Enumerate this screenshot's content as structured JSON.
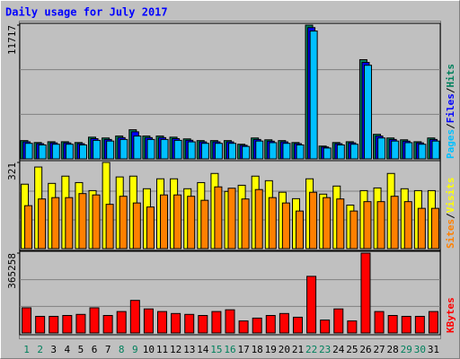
{
  "chart_data": {
    "type": "bar",
    "title": "Daily usage for July 2017",
    "categories": [
      "1",
      "2",
      "3",
      "4",
      "5",
      "6",
      "7",
      "8",
      "9",
      "10",
      "11",
      "12",
      "13",
      "14",
      "15",
      "16",
      "17",
      "18",
      "19",
      "20",
      "21",
      "22",
      "23",
      "24",
      "25",
      "26",
      "27",
      "28",
      "29",
      "30",
      "31"
    ],
    "highlight": [
      0,
      1,
      7,
      8,
      14,
      15,
      21,
      22,
      28,
      29
    ],
    "highlight_color": "#00805c",
    "legend_separator": "/",
    "grid": true,
    "panels": [
      {
        "type": "bar",
        "ylim": [
          0,
          11717
        ],
        "yticks": [
          11717
        ],
        "series": [
          {
            "name": "Hits",
            "color": "#00805c",
            "values": [
              1600,
              1430,
              1500,
              1500,
              1430,
              1900,
              1830,
              2000,
              2550,
              2000,
              2000,
              1900,
              1750,
              1600,
              1600,
              1600,
              1280,
              1830,
              1670,
              1600,
              1430,
              11717,
              1120,
              1430,
              1500,
              8690,
              2150,
              1830,
              1670,
              1500,
              1830
            ]
          },
          {
            "name": "Files",
            "color": "#0000ff",
            "values": [
              1490,
              1330,
              1400,
              1400,
              1330,
              1770,
              1700,
              1860,
              2370,
              1860,
              1860,
              1770,
              1630,
              1490,
              1490,
              1490,
              1190,
              1700,
              1550,
              1490,
              1330,
              11500,
              1040,
              1330,
              1400,
              8450,
              2000,
              1700,
              1550,
              1400,
              1700
            ]
          },
          {
            "name": "Pages",
            "color": "#00c0ff",
            "values": [
              1360,
              1220,
              1280,
              1280,
              1220,
              1620,
              1560,
              1700,
              2000,
              1700,
              1700,
              1620,
              1490,
              1360,
              1360,
              1360,
              1090,
              1560,
              1420,
              1360,
              1220,
              11200,
              950,
              1220,
              1280,
              8200,
              1830,
              1560,
              1420,
              1280,
              1560
            ]
          }
        ]
      },
      {
        "type": "bar",
        "ylim": [
          0,
          321
        ],
        "yticks": [
          321
        ],
        "series": [
          {
            "name": "Visits",
            "color": "#ffff00",
            "values": [
              240,
              304,
              243,
              270,
              246,
              216,
              321,
              267,
              270,
              223,
              260,
              260,
              223,
              246,
              280,
              213,
              236,
              270,
              253,
              210,
              186,
              260,
              203,
              233,
              162,
              216,
              226,
              280,
              223,
              216,
              216
            ]
          },
          {
            "name": "Sites",
            "color": "#ff8000",
            "values": [
              160,
              185,
              190,
              190,
              205,
              200,
              165,
              195,
              170,
              155,
              200,
              200,
              195,
              180,
              230,
              225,
              185,
              220,
              190,
              170,
              140,
              210,
              190,
              185,
              140,
              175,
              175,
              195,
              175,
              150,
              150
            ]
          }
        ]
      },
      {
        "type": "bar",
        "ylim": [
          0,
          365258
        ],
        "yticks": [
          365258
        ],
        "series": [
          {
            "name": "KBytes",
            "color": "#ff0000",
            "values": [
              115000,
              76000,
              76000,
              80000,
              85000,
              115000,
              80000,
              98000,
              149000,
              110000,
              98000,
              89000,
              85000,
              80000,
              98000,
              106000,
              55000,
              68000,
              80000,
              89000,
              72000,
              259000,
              59000,
              110000,
              55000,
              365258,
              98000,
              80000,
              76000,
              76000,
              98000
            ]
          }
        ]
      }
    ]
  }
}
